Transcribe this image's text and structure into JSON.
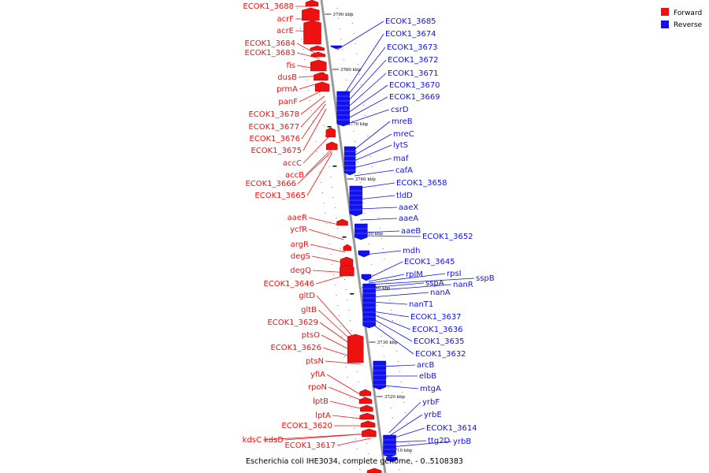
{
  "legend": {
    "forward_label": "Forward",
    "reverse_label": "Reverse",
    "forward_color": "#ee1111",
    "reverse_color": "#1111ee"
  },
  "caption": "Escherichia coli IHE3034, complete genome. - 0..5108383",
  "colors": {
    "forward": "#ee1111",
    "reverse": "#1111ee",
    "backbone": "#888888"
  },
  "ticks": [
    "3790 kbp",
    "3780 kbp",
    "3770 kbp",
    "3760 kbp",
    "3750 kbp",
    "3740 kbp",
    "3730 kbp",
    "3720 kbp",
    "3710 kbp"
  ],
  "forward_genes": [
    "ECOK1_3688",
    "acrF",
    "acrE",
    "ECOK1_3684",
    "ECOK1_3683",
    "fis",
    "dusB",
    "prmA",
    "panF",
    "ECOK1_3678",
    "ECOK1_3677",
    "ECOK1_3676",
    "ECOK1_3675",
    "accC",
    "accB",
    "ECOK1_3666",
    "ECOK1_3665",
    "aaeR",
    "ycfR",
    "argR",
    "degS",
    "degQ",
    "ECOK1_3646",
    "gltD",
    "gltB",
    "ECOK1_3629",
    "ptsO",
    "ECOK1_3626",
    "ptsN",
    "yfiA",
    "rpoN",
    "lptB",
    "lptA",
    "ECOK1_3620",
    "kdsC",
    "kdsD",
    "ECOK1_3617"
  ],
  "reverse_genes": [
    "ECOK1_3685",
    "ECOK1_3674",
    "ECOK1_3673",
    "ECOK1_3672",
    "ECOK1_3671",
    "ECOK1_3670",
    "ECOK1_3669",
    "csrD",
    "mreB",
    "mreC",
    "lytS",
    "maf",
    "cafA",
    "ECOK1_3658",
    "tldD",
    "aaeX",
    "aaeA",
    "aaeB",
    "ECOK1_3652",
    "mdh",
    "ECOK1_3645",
    "rplM",
    "rpsI",
    "sspA",
    "nanR",
    "sspB",
    "nanA",
    "nanT1",
    "ECOK1_3637",
    "ECOK1_3636",
    "ECOK1_3635",
    "ECOK1_3632",
    "arcB",
    "elbB",
    "mtgA",
    "yrbF",
    "yrbE",
    "ECOK1_3614",
    "ttg2D",
    "yrbB"
  ]
}
